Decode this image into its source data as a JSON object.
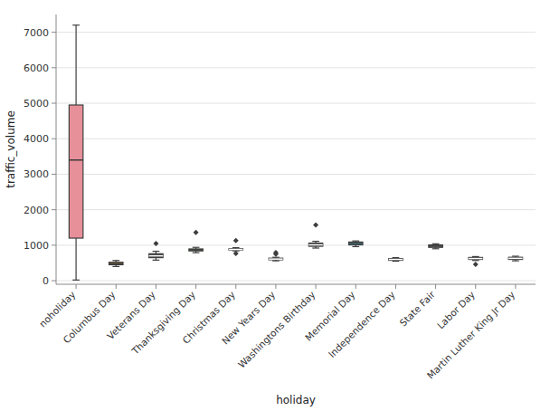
{
  "chart_data": {
    "type": "box",
    "xlabel": "holiday",
    "ylabel": "traffic_volume",
    "categories": [
      "noholiday",
      "Columbus Day",
      "Veterans Day",
      "Thanksgiving Day",
      "Christmas Day",
      "New Years Day",
      "Washingtons Birthday",
      "Memorial Day",
      "Independence Day",
      "State Fair",
      "Labor Day",
      "Martin Luther King Jr Day"
    ],
    "whislo": [
      20,
      400,
      580,
      790,
      840,
      560,
      920,
      960,
      550,
      900,
      570,
      560
    ],
    "q1": [
      1200,
      450,
      650,
      840,
      865,
      590,
      970,
      1010,
      575,
      940,
      600,
      600
    ],
    "med": [
      3400,
      480,
      700,
      870,
      880,
      610,
      1010,
      1050,
      600,
      975,
      625,
      630
    ],
    "q3": [
      4950,
      520,
      760,
      895,
      900,
      635,
      1060,
      1090,
      625,
      1010,
      655,
      660
    ],
    "whishi": [
      7200,
      570,
      830,
      940,
      930,
      660,
      1110,
      1120,
      650,
      1040,
      680,
      690
    ],
    "fliers": [
      [],
      [],
      [
        1050
      ],
      [
        1360
      ],
      [
        1130,
        770
      ],
      [
        790,
        750
      ],
      [
        1570
      ],
      [],
      [],
      [],
      [
        460
      ],
      []
    ],
    "colors": [
      "#e8909a",
      "#b5892a",
      "#3d3d3d",
      "#4a8c3f",
      "#3d3d3d",
      "#3d3d3d",
      "#3d3d3d",
      "#3bbfc8",
      "#3d3d3d",
      "#858585",
      "#3d3d3d",
      "#3d3d3d"
    ],
    "ylim": [
      -100,
      7500
    ],
    "yticks": [
      0,
      1000,
      2000,
      3000,
      4000,
      5000,
      6000,
      7000
    ],
    "grid": true
  }
}
